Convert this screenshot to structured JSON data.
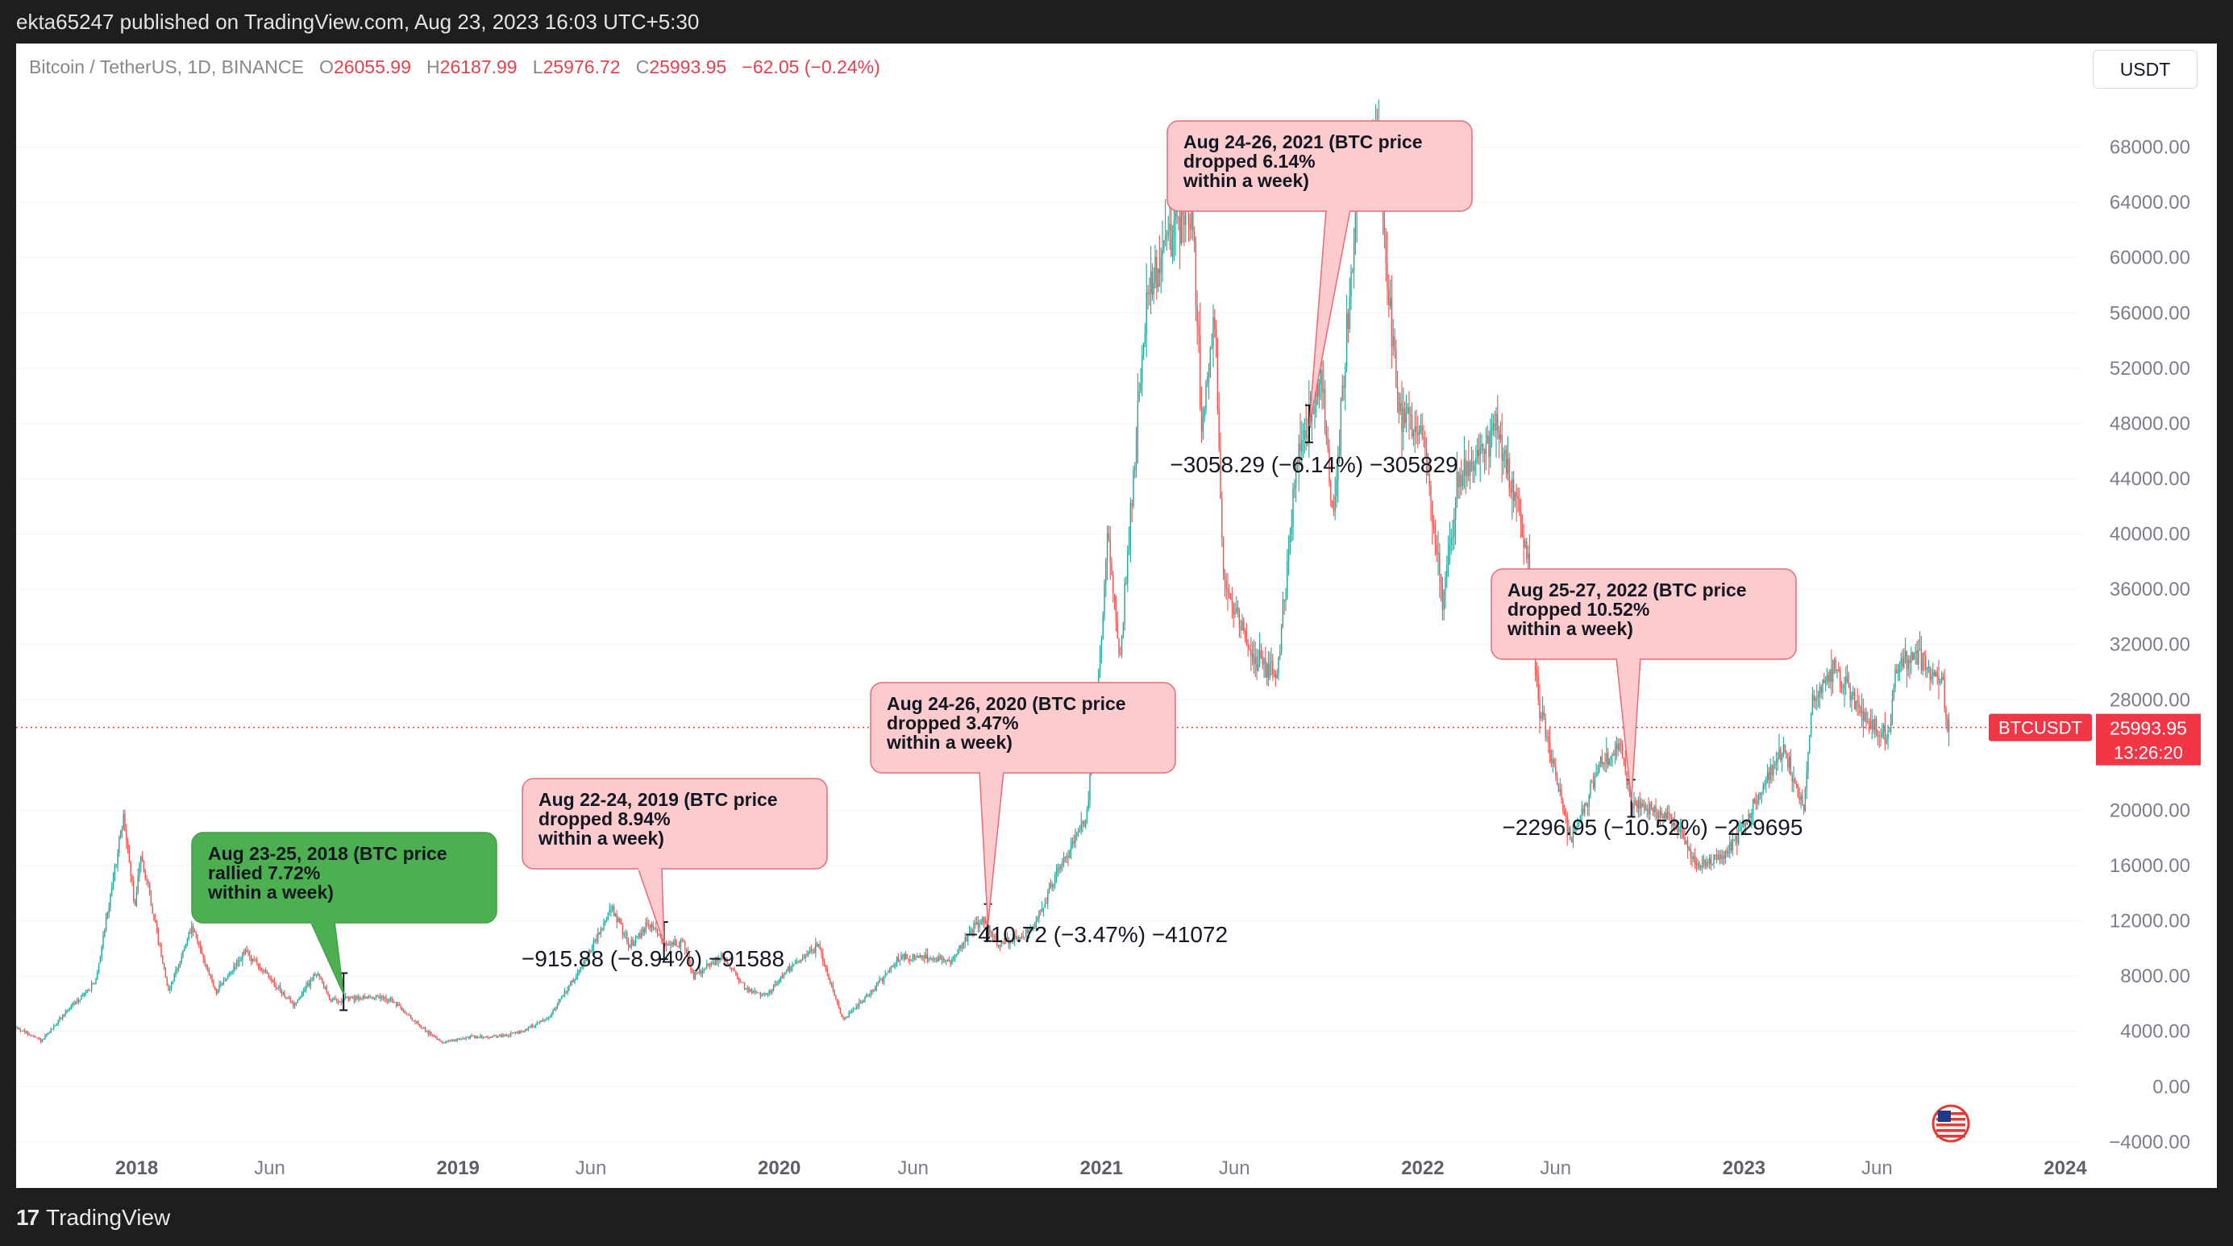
{
  "header": {
    "publish_line": "ekta65247 published on TradingView.com, Aug 23, 2023 16:03 UTC+5:30"
  },
  "legend": {
    "symbol": "Bitcoin / TetherUS, 1D, BINANCE",
    "open_label": "O",
    "open": "26055.99",
    "high_label": "H",
    "high": "26187.99",
    "low_label": "L",
    "low": "25976.72",
    "close_label": "C",
    "close": "25993.95",
    "change": "−62.05 (−0.24%)"
  },
  "toolbar": {
    "currency_button": "USDT"
  },
  "footer": {
    "brand": "TradingView",
    "brand_mark": "17"
  },
  "price_tag": {
    "symbol": "BTCUSDT",
    "price": "25993.95",
    "countdown": "13:26:20"
  },
  "colors": {
    "up": "#26a69a",
    "down": "#ef5350",
    "green_callout": "#4caf50",
    "red_callout": "#fccbcd",
    "price_line": "#f23645"
  },
  "chart_data": {
    "type": "candlestick",
    "x_ticks": [
      "2018",
      "Jun",
      "2019",
      "Jun",
      "2020",
      "Jun",
      "2021",
      "Jun",
      "2022",
      "Jun",
      "2023",
      "Jun",
      "2024"
    ],
    "y_ticks": [
      "68000.00",
      "64000.00",
      "60000.00",
      "56000.00",
      "52000.00",
      "48000.00",
      "44000.00",
      "40000.00",
      "36000.00",
      "32000.00",
      "28000.00",
      "20000.00",
      "16000.00",
      "12000.00",
      "8000.00",
      "4000.00",
      "0.00",
      "−4000.00"
    ],
    "ylim": [
      -5000,
      72000
    ],
    "current_price": 25993.95,
    "series": [
      {
        "name": "BTCUSDT",
        "points": [
          [
            "2017-08-17",
            4300
          ],
          [
            "2017-09-15",
            3300
          ],
          [
            "2017-10-15",
            5600
          ],
          [
            "2017-11-15",
            7500
          ],
          [
            "2017-12-17",
            19500
          ],
          [
            "2017-12-30",
            13000
          ],
          [
            "2018-01-06",
            17000
          ],
          [
            "2018-02-06",
            6900
          ],
          [
            "2018-03-05",
            11500
          ],
          [
            "2018-04-01",
            6800
          ],
          [
            "2018-05-05",
            9800
          ],
          [
            "2018-06-28",
            5900
          ],
          [
            "2018-07-25",
            8300
          ],
          [
            "2018-08-10",
            6200
          ],
          [
            "2018-09-15",
            6500
          ],
          [
            "2018-10-15",
            6400
          ],
          [
            "2018-11-20",
            4300
          ],
          [
            "2018-12-15",
            3200
          ],
          [
            "2019-01-15",
            3600
          ],
          [
            "2019-02-15",
            3600
          ],
          [
            "2019-03-15",
            4000
          ],
          [
            "2019-04-15",
            5100
          ],
          [
            "2019-05-15",
            8000
          ],
          [
            "2019-06-26",
            12900
          ],
          [
            "2019-07-15",
            10200
          ],
          [
            "2019-08-06",
            11800
          ],
          [
            "2019-08-23",
            10400
          ],
          [
            "2019-09-15",
            10300
          ],
          [
            "2019-09-26",
            8000
          ],
          [
            "2019-10-27",
            9500
          ],
          [
            "2019-11-25",
            7000
          ],
          [
            "2019-12-18",
            6600
          ],
          [
            "2020-01-15",
            8800
          ],
          [
            "2020-02-14",
            10200
          ],
          [
            "2020-03-13",
            4800
          ],
          [
            "2020-04-15",
            6900
          ],
          [
            "2020-05-15",
            9300
          ],
          [
            "2020-06-15",
            9400
          ],
          [
            "2020-07-15",
            9200
          ],
          [
            "2020-08-17",
            12200
          ],
          [
            "2020-08-25",
            11600
          ],
          [
            "2020-09-05",
            10200
          ],
          [
            "2020-10-15",
            11400
          ],
          [
            "2020-11-15",
            16000
          ],
          [
            "2020-12-15",
            19400
          ],
          [
            "2020-12-27",
            28000
          ],
          [
            "2021-01-08",
            40000
          ],
          [
            "2021-01-22",
            31000
          ],
          [
            "2021-02-21",
            57000
          ],
          [
            "2021-03-13",
            61000
          ],
          [
            "2021-04-14",
            64000
          ],
          [
            "2021-04-25",
            48000
          ],
          [
            "2021-05-10",
            56000
          ],
          [
            "2021-05-19",
            37000
          ],
          [
            "2021-06-22",
            31000
          ],
          [
            "2021-07-20",
            29800
          ],
          [
            "2021-08-14",
            47500
          ],
          [
            "2021-08-25",
            48000
          ],
          [
            "2021-09-07",
            52000
          ],
          [
            "2021-09-21",
            41000
          ],
          [
            "2021-10-20",
            66000
          ],
          [
            "2021-11-10",
            68500
          ],
          [
            "2021-12-04",
            49000
          ],
          [
            "2022-01-01",
            47000
          ],
          [
            "2022-01-24",
            35000
          ],
          [
            "2022-02-10",
            44000
          ],
          [
            "2022-03-28",
            47500
          ],
          [
            "2022-05-01",
            38000
          ],
          [
            "2022-05-12",
            28000
          ],
          [
            "2022-06-18",
            17700
          ],
          [
            "2022-07-20",
            23000
          ],
          [
            "2022-08-14",
            24500
          ],
          [
            "2022-08-26",
            20400
          ],
          [
            "2022-09-15",
            20000
          ],
          [
            "2022-10-15",
            19200
          ],
          [
            "2022-11-09",
            16000
          ],
          [
            "2022-12-15",
            17000
          ],
          [
            "2023-01-15",
            21000
          ],
          [
            "2023-02-15",
            24500
          ],
          [
            "2023-03-10",
            20000
          ],
          [
            "2023-03-20",
            28000
          ],
          [
            "2023-04-14",
            30400
          ],
          [
            "2023-05-15",
            27000
          ],
          [
            "2023-06-15",
            25000
          ],
          [
            "2023-06-22",
            30500
          ],
          [
            "2023-07-14",
            31000
          ],
          [
            "2023-08-15",
            29000
          ],
          [
            "2023-08-18",
            26000
          ],
          [
            "2023-08-23",
            25994
          ]
        ]
      }
    ],
    "annotations": [
      {
        "text_lines": [
          "Aug 23-25, 2018 (BTC price",
          "rallied 7.72%",
          "within a week)"
        ],
        "style": "green",
        "date": "2018-08-24",
        "price": 6700,
        "measure": ""
      },
      {
        "text_lines": [
          "Aug 22-24, 2019 (BTC price",
          "dropped 8.94%",
          "within a week)"
        ],
        "style": "red",
        "date": "2019-08-23",
        "price": 10400,
        "measure": "−915.88 (−8.94%) −91588"
      },
      {
        "text_lines": [
          "Aug 24-26, 2020 (BTC price",
          "dropped 3.47%",
          "within a week)"
        ],
        "style": "red",
        "date": "2020-08-25",
        "price": 11700,
        "measure": "−410.72 (−3.47%) −41072"
      },
      {
        "text_lines": [
          "Aug 24-26, 2021 (BTC price",
          "dropped 6.14%",
          "within a week)"
        ],
        "style": "red",
        "date": "2021-08-25",
        "price": 47800,
        "measure": "−3058.29 (−6.14%) −305829"
      },
      {
        "text_lines": [
          "Aug 25-27, 2022 (BTC price",
          "dropped 10.52%",
          "within a week)"
        ],
        "style": "red",
        "date": "2022-08-26",
        "price": 20700,
        "measure": "−2296.95 (−10.52%) −229695"
      }
    ]
  }
}
